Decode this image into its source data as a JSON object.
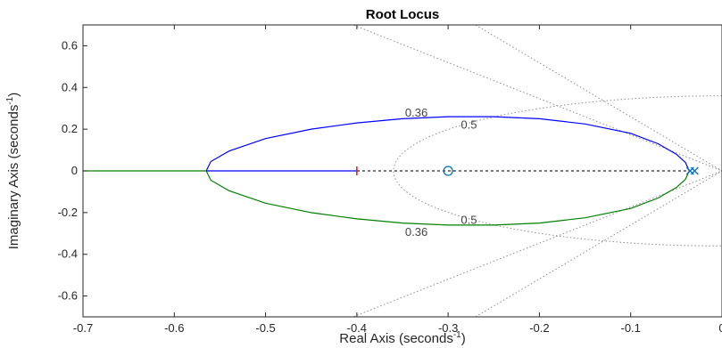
{
  "chart_data": {
    "type": "line",
    "title": "Root Locus",
    "xlabel": "Real Axis (seconds",
    "ylabel": "Imaginary Axis (seconds",
    "label_exponent": "-1",
    "label_close": ")",
    "xlim": [
      -0.7,
      0
    ],
    "ylim": [
      -0.7,
      0.7
    ],
    "xticks": [
      -0.7,
      -0.6,
      -0.5,
      -0.4,
      -0.3,
      -0.2,
      -0.1,
      0
    ],
    "xtick_labels": [
      "-0.7",
      "-0.6",
      "-0.5",
      "-0.4",
      "-0.3",
      "-0.2",
      "-0.1",
      "0"
    ],
    "yticks": [
      -0.6,
      -0.4,
      -0.2,
      0,
      0.2,
      0.4,
      0.6
    ],
    "ytick_labels": [
      "-0.6",
      "-0.4",
      "-0.2",
      "0",
      "0.2",
      "0.4",
      "0.6"
    ],
    "grid": false,
    "colors": {
      "branch_upper": "#0000ff",
      "branch_lower": "#008000",
      "pole": "#ff0000",
      "zero": "#0072bd",
      "grid": "#8c8c8c",
      "axis": "#262626"
    },
    "series": [
      {
        "x": [
          -0.565,
          -0.56,
          -0.54,
          -0.5,
          -0.45,
          -0.4,
          -0.35,
          -0.3,
          -0.25,
          -0.2,
          -0.15,
          -0.1,
          -0.07,
          -0.05,
          -0.04,
          -0.036
        ],
        "y": [
          0,
          0.045,
          0.095,
          0.155,
          0.2,
          0.23,
          0.25,
          0.26,
          0.26,
          0.25,
          0.225,
          0.18,
          0.13,
          0.08,
          0.04,
          0
        ]
      },
      {
        "x": [
          -0.565,
          -0.56,
          -0.54,
          -0.5,
          -0.45,
          -0.4,
          -0.35,
          -0.3,
          -0.25,
          -0.2,
          -0.15,
          -0.1,
          -0.07,
          -0.05,
          -0.04,
          -0.036
        ],
        "y": [
          0,
          -0.045,
          -0.095,
          -0.155,
          -0.2,
          -0.23,
          -0.25,
          -0.26,
          -0.26,
          -0.25,
          -0.225,
          -0.18,
          -0.13,
          -0.08,
          -0.04,
          0
        ]
      },
      {
        "x": [
          -0.4,
          -0.565
        ],
        "y": [
          0,
          0
        ]
      },
      {
        "x": [
          -0.565,
          -0.7
        ],
        "y": [
          0,
          0
        ]
      },
      {
        "x": [
          -0.4,
          -0.036
        ],
        "y": [
          0,
          0
        ]
      }
    ],
    "poles": [
      {
        "x": -0.4,
        "y": 0
      },
      {
        "x": -0.035,
        "y": 0
      },
      {
        "x": -0.03,
        "y": 0
      }
    ],
    "zeros": [
      {
        "x": -0.3,
        "y": 0
      }
    ],
    "damping_lines": [
      {
        "zeta": 0.5,
        "label": "0.5"
      },
      {
        "zeta": 0.36,
        "label": "0.36"
      }
    ],
    "frequency_circle": {
      "wn": 0.36
    }
  }
}
